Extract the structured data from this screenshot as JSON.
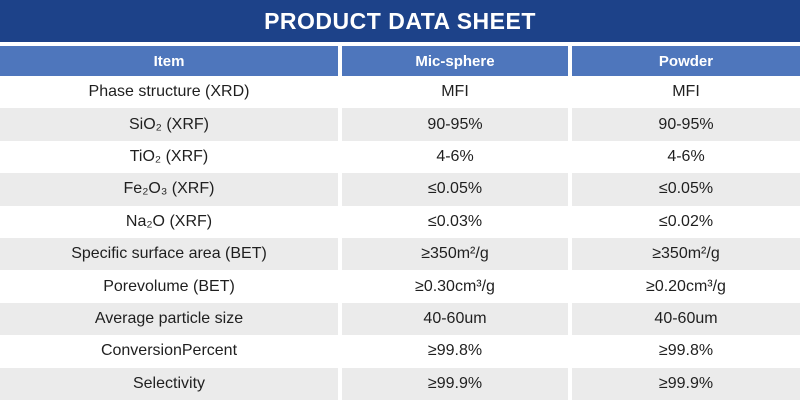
{
  "title": "PRODUCT DATA SHEET",
  "colors": {
    "title_bar": "#1d4289",
    "header_row": "#4e76bc",
    "row_stripe": "#ebebeb",
    "body_text": "#1f1f1f",
    "header_text": "#ffffff"
  },
  "table": {
    "columns": {
      "item": "Item",
      "mic_sphere": "Mic-sphere",
      "powder": "Powder"
    },
    "rows": [
      {
        "item": "Phase structure (XRD)",
        "mic_sphere": "MFI",
        "powder": "MFI"
      },
      {
        "item": "SiO₂ (XRF)",
        "mic_sphere": "90-95%",
        "powder": "90-95%"
      },
      {
        "item": "TiO₂ (XRF)",
        "mic_sphere": "4-6%",
        "powder": "4-6%"
      },
      {
        "item": "Fe₂O₃ (XRF)",
        "mic_sphere": "≤0.05%",
        "powder": "≤0.05%"
      },
      {
        "item": "Na₂O (XRF)",
        "mic_sphere": "≤0.03%",
        "powder": "≤0.02%"
      },
      {
        "item": "Specific surface area (BET)",
        "mic_sphere": "≥350m²/g",
        "powder": "≥350m²/g"
      },
      {
        "item": "Porevolume (BET)",
        "mic_sphere": "≥0.30cm³/g",
        "powder": "≥0.20cm³/g"
      },
      {
        "item": "Average particle size",
        "mic_sphere": "40-60um",
        "powder": "40-60um"
      },
      {
        "item": "ConversionPercent",
        "mic_sphere": "≥99.8%",
        "powder": "≥99.8%"
      },
      {
        "item": "Selectivity",
        "mic_sphere": "≥99.9%",
        "powder": "≥99.9%"
      }
    ]
  }
}
